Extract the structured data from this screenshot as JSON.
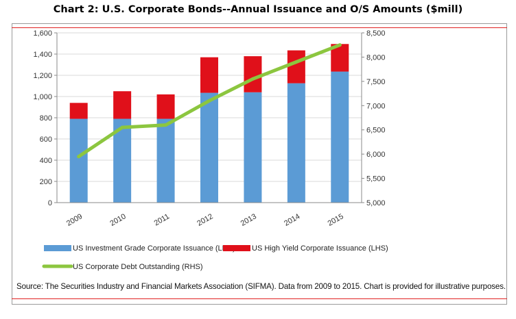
{
  "title": "Chart 2: U.S. Corporate Bonds--Annual Issuance and O/S Amounts ($mill)",
  "source": "Source: The Securities Industry and Financial Markets Association (SIFMA). Data from 2009 to 2015. Chart is provided for illustrative purposes.",
  "colors": {
    "ig": "#5b9bd5",
    "hy": "#e0101a",
    "line": "#8cc63f",
    "grid": "#d9d9d9",
    "rule": "#e02020"
  },
  "chart_data": {
    "type": "bar",
    "stacked": true,
    "categories": [
      "2009",
      "2010",
      "2011",
      "2012",
      "2013",
      "2014",
      "2015"
    ],
    "series": [
      {
        "name": "US Investment Grade Corporate Issuance (LHS)",
        "type": "bar",
        "axis": "left",
        "values": [
          790,
          790,
          790,
          1035,
          1040,
          1125,
          1235
        ]
      },
      {
        "name": "US High Yield Corporate Issuance (LHS)",
        "type": "bar",
        "axis": "left",
        "values": [
          150,
          260,
          230,
          335,
          340,
          310,
          260
        ]
      },
      {
        "name": "US Corporate Debt Outstanding (RHS)",
        "type": "line",
        "axis": "right",
        "values": [
          5950,
          6550,
          6600,
          7100,
          7550,
          7900,
          8250
        ]
      }
    ],
    "y_left": {
      "min": 0,
      "max": 1600,
      "step": 200,
      "ticks": [
        "0",
        "200",
        "400",
        "600",
        "800",
        "1,000",
        "1,200",
        "1,400",
        "1,600"
      ]
    },
    "y_right": {
      "min": 5000,
      "max": 8500,
      "step": 500,
      "ticks": [
        "5,000",
        "5,500",
        "6,000",
        "6,500",
        "7,000",
        "7,500",
        "8,000",
        "8,500"
      ]
    },
    "grid": true,
    "legend_position": "bottom"
  }
}
